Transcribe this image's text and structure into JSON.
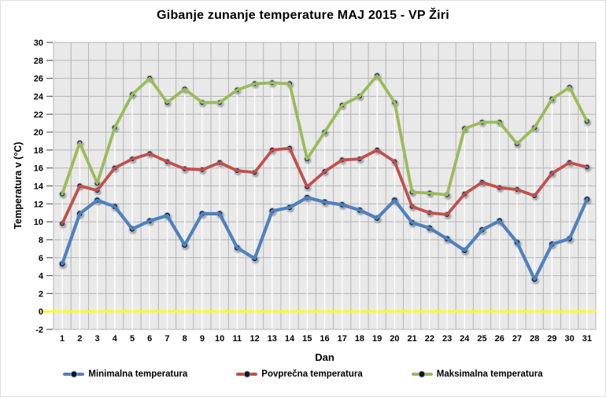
{
  "chart_data": {
    "type": "line",
    "title": "Gibanje zunanje temperature MAJ 2015 - VP Žiri",
    "xlabel": "Dan",
    "ylabel": "Temperatura v (°C)",
    "x": [
      1,
      2,
      3,
      4,
      5,
      6,
      7,
      8,
      9,
      10,
      11,
      12,
      13,
      14,
      15,
      16,
      17,
      18,
      19,
      20,
      21,
      22,
      23,
      24,
      25,
      26,
      27,
      28,
      29,
      30,
      31
    ],
    "ylim": [
      -2,
      30
    ],
    "ytick_step": 2,
    "grid": true,
    "legend_position": "bottom",
    "plot_bg_color": "#e9e9e9",
    "gridline_color": "#b4b4b4",
    "drop_line_color": "#ffffff",
    "zero_line_color": "#ffff00",
    "marker_fill": "#15151d",
    "marker_ring": "#a3b8d0",
    "series": [
      {
        "id": "min",
        "name": "Minimalna temperatura",
        "color": "#4F81BD",
        "values": [
          5.3,
          10.9,
          12.4,
          11.7,
          9.2,
          10.1,
          10.7,
          7.4,
          10.9,
          10.9,
          7.1,
          5.9,
          11.2,
          11.6,
          12.7,
          12.2,
          11.9,
          11.3,
          10.4,
          12.4,
          9.9,
          9.3,
          8.1,
          6.8,
          9.1,
          10.1,
          7.7,
          3.6,
          7.5,
          8.1,
          12.5
        ]
      },
      {
        "id": "avg",
        "name": "Povprečna temperatura",
        "color": "#C0504D",
        "values": [
          9.8,
          14.0,
          13.5,
          16.0,
          17.0,
          17.6,
          16.7,
          15.9,
          15.8,
          16.6,
          15.7,
          15.5,
          18.0,
          18.2,
          13.9,
          15.6,
          16.9,
          17.0,
          18.0,
          16.7,
          11.7,
          11.0,
          10.8,
          13.1,
          14.4,
          13.8,
          13.6,
          12.9,
          15.4,
          16.6,
          16.1
        ]
      },
      {
        "id": "max",
        "name": "Maksimalna temperatura",
        "color": "#9BBB59",
        "values": [
          13.1,
          18.8,
          14.3,
          20.5,
          24.2,
          26.0,
          23.3,
          24.8,
          23.3,
          23.3,
          24.7,
          25.4,
          25.5,
          25.4,
          17.0,
          20.0,
          23.0,
          24.0,
          26.3,
          23.3,
          13.3,
          13.2,
          13.0,
          20.4,
          21.1,
          21.1,
          18.7,
          20.5,
          23.7,
          25.0,
          21.2
        ]
      }
    ]
  }
}
